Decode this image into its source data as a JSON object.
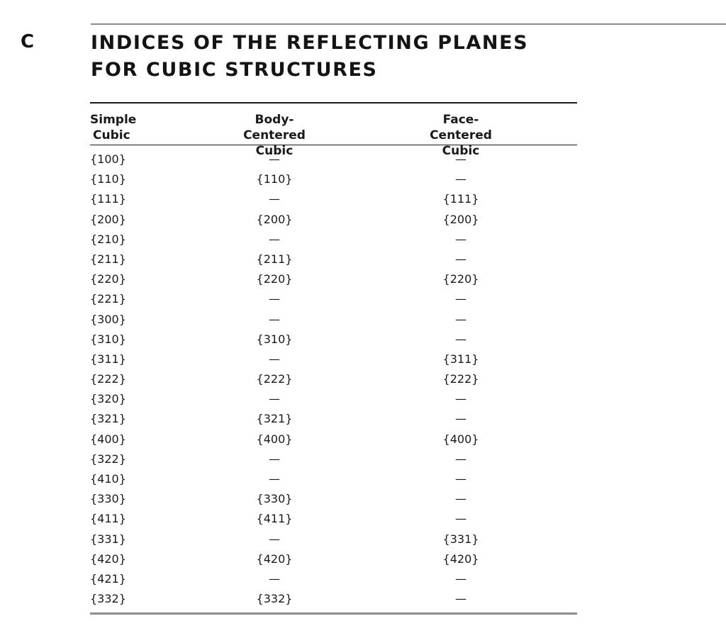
{
  "appendix": {
    "letter": "C"
  },
  "title": {
    "line1": "INDICES OF THE REFLECTING PLANES",
    "line2": "FOR CUBIC STRUCTURES"
  },
  "table": {
    "headers": [
      {
        "line1": "Simple",
        "line2": "Cubic"
      },
      {
        "line1": "Body-Centered",
        "line2": "Cubic"
      },
      {
        "line1": "Face-Centered",
        "line2": "Cubic"
      }
    ],
    "rows": [
      [
        "{100}",
        "—",
        "—"
      ],
      [
        "{110}",
        "{110}",
        "—"
      ],
      [
        "{111}",
        "—",
        "{111}"
      ],
      [
        "{200}",
        "{200}",
        "{200}"
      ],
      [
        "{210}",
        "—",
        "—"
      ],
      [
        "{211}",
        "{211}",
        "—"
      ],
      [
        "{220}",
        "{220}",
        "{220}"
      ],
      [
        "{221}",
        "—",
        "—"
      ],
      [
        "{300}",
        "—",
        "—"
      ],
      [
        "{310}",
        "{310}",
        "—"
      ],
      [
        "{311}",
        "—",
        "{311}"
      ],
      [
        "{222}",
        "{222}",
        "{222}"
      ],
      [
        "{320}",
        "—",
        "—"
      ],
      [
        "{321}",
        "{321}",
        "—"
      ],
      [
        "{400}",
        "{400}",
        "{400}"
      ],
      [
        "{322}",
        "—",
        "—"
      ],
      [
        "{410}",
        "—",
        "—"
      ],
      [
        "{330}",
        "{330}",
        "—"
      ],
      [
        "{411}",
        "{411}",
        "—"
      ],
      [
        "{331}",
        "—",
        "{331}"
      ],
      [
        "{420}",
        "{420}",
        "{420}"
      ],
      [
        "{421}",
        "—",
        "—"
      ],
      [
        "{332}",
        "{332}",
        "—"
      ]
    ]
  }
}
